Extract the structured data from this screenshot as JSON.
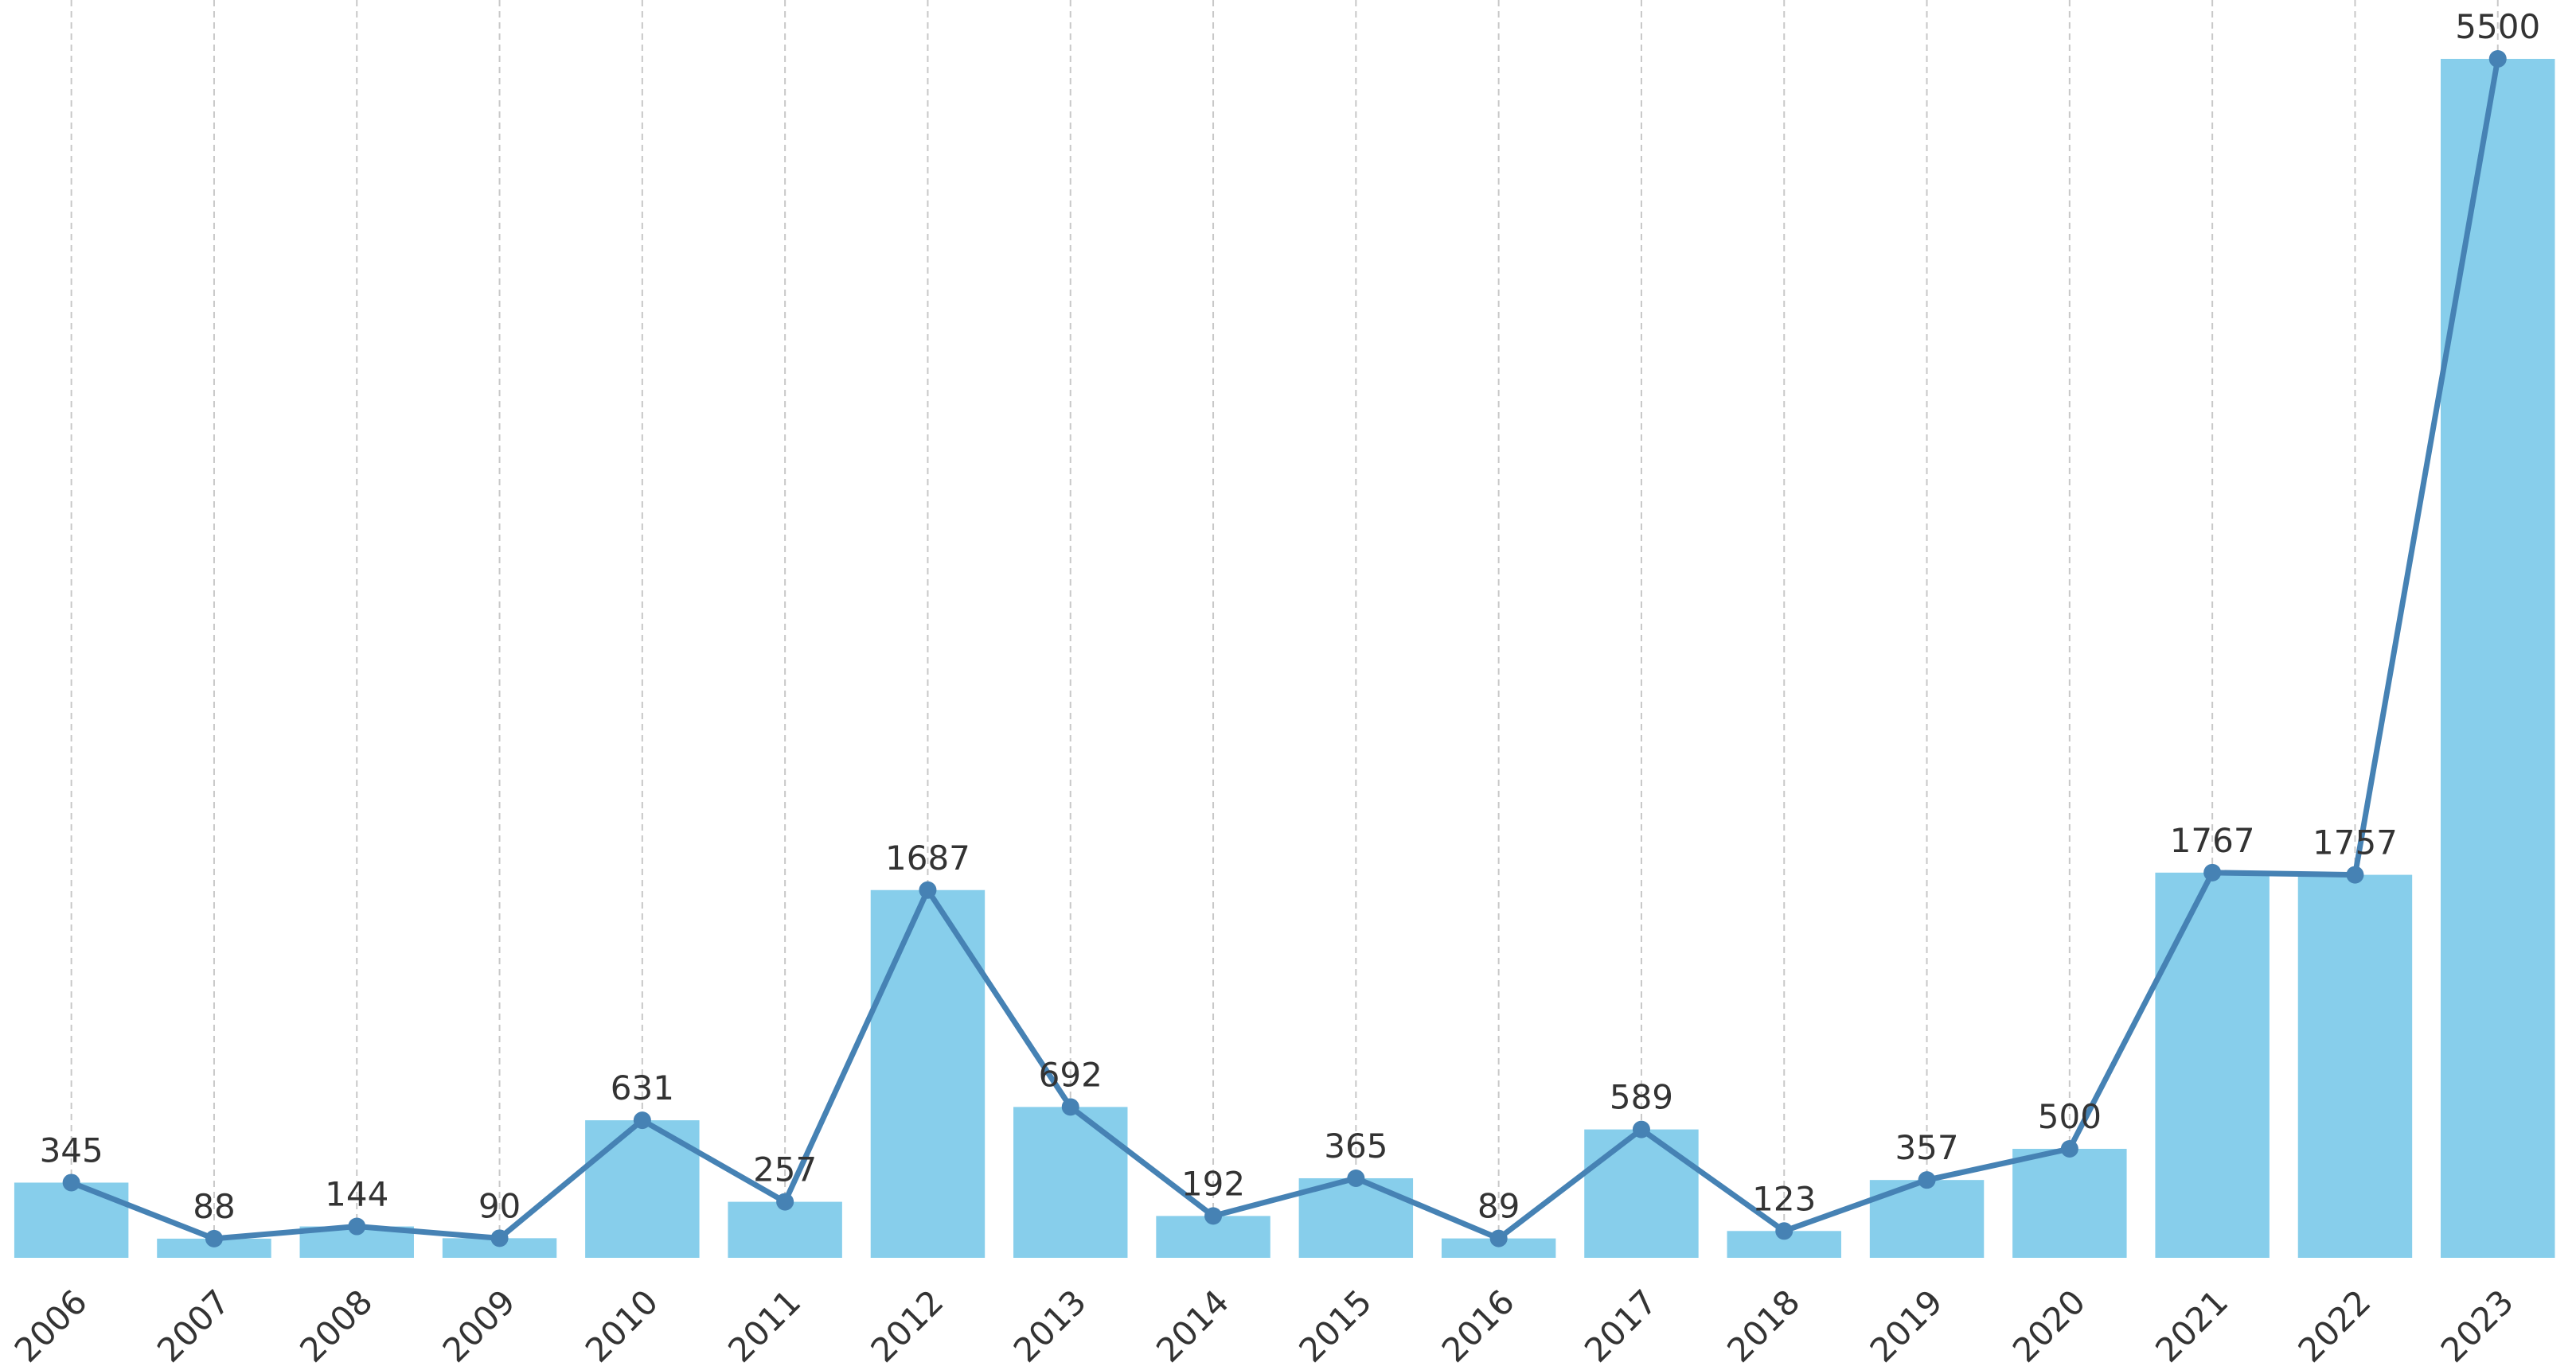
{
  "chart_data": {
    "type": "bar",
    "categories": [
      "2006",
      "2007",
      "2008",
      "2009",
      "2010",
      "2011",
      "2012",
      "2013",
      "2014",
      "2015",
      "2016",
      "2017",
      "2018",
      "2019",
      "2020",
      "2021",
      "2022",
      "2023"
    ],
    "values": [
      345,
      88,
      144,
      90,
      631,
      257,
      1687,
      692,
      192,
      365,
      89,
      589,
      123,
      357,
      500,
      1767,
      1757,
      5500
    ],
    "color": "#87ceeb",
    "line": true,
    "line_color": "#4682b4",
    "ylim": [
      0,
      5770
    ],
    "grid": "x",
    "data_labels": true
  }
}
